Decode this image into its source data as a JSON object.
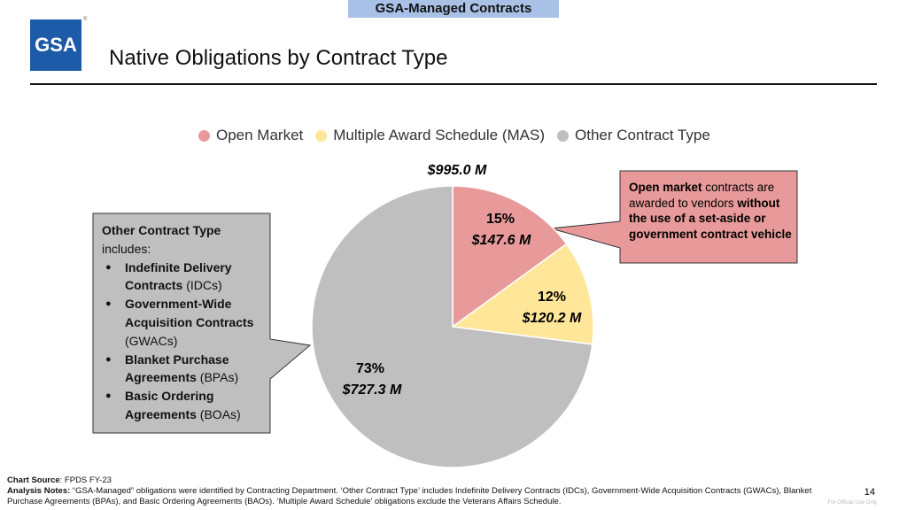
{
  "banner": "GSA-Managed Contracts",
  "logo": "GSA",
  "title": "Native Obligations by Contract Type",
  "chart_data": {
    "type": "pie",
    "total_label": "$995.0 M",
    "legend_position": "top",
    "series": [
      {
        "name": "Open Market",
        "percent": 15,
        "value": 147.6,
        "pct_label": "15%",
        "value_label": "$147.6 M",
        "color": "#E89A9A"
      },
      {
        "name": "Multiple Award Schedule (MAS)",
        "percent": 12,
        "value": 120.2,
        "pct_label": "12%",
        "value_label": "$120.2 M",
        "color": "#FFE699"
      },
      {
        "name": "Other Contract Type",
        "percent": 73,
        "value": 727.3,
        "pct_label": "73%",
        "value_label": "$727.3 M",
        "color": "#BFBFBF"
      }
    ]
  },
  "left_callout": {
    "heading": "Other Contract Type",
    "intro": "includes:",
    "items": [
      {
        "bold": "Indefinite Delivery Contracts",
        "rest": " (IDCs)"
      },
      {
        "bold": "Government-Wide Acquisition Contracts",
        "rest": " (GWACs)"
      },
      {
        "bold": "Blanket Purchase Agreements",
        "rest": " (BPAs)"
      },
      {
        "bold": "Basic Ordering Agreements",
        "rest": " (BOAs)"
      }
    ]
  },
  "right_callout": {
    "b1": "Open market",
    "t1": " contracts are awarded to vendors ",
    "b2": "without the use of a set-aside or government contract vehicle"
  },
  "footer": {
    "source_label": "Chart Source",
    "source": ": FPDS FY-23",
    "notes_label": "Analysis Notes:",
    "notes": " “GSA-Managed” obligations were identified by Contracting Department. ‘Other Contract Type’ includes Indefinite Delivery Contracts (IDCs), Government-Wide Acquisition Contracts (GWACs), Blanket Purchase Agreements (BPAs), and Basic Ordering Agreements (BAOs). ‘Multiple Award Schedule’ obligations exclude the Veterans Affairs Schedule.",
    "page": "14",
    "classification": "For Official Use Only"
  }
}
